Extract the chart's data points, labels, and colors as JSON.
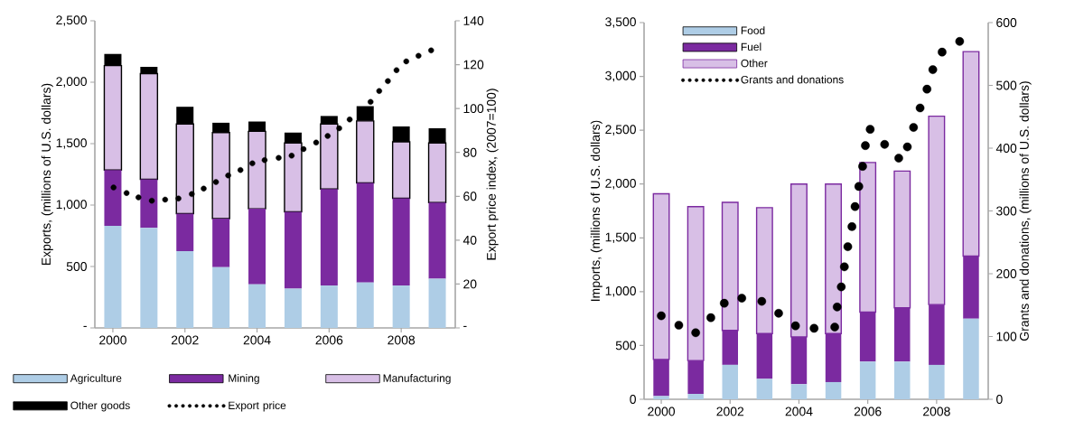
{
  "chart_data": [
    {
      "type": "bar",
      "stacked": true,
      "ylabel": "Exports, (millions of U.S. dollars)",
      "y2label": "Export price index,  (2007=100)",
      "x": [
        2000,
        2001,
        2002,
        2003,
        2004,
        2005,
        2006,
        2007,
        2008,
        2009
      ],
      "xlim": [
        1999.5,
        2009.5
      ],
      "xticks": [
        2000,
        2002,
        2004,
        2006,
        2008
      ],
      "ylim": [
        0,
        2500
      ],
      "yticks": [
        {
          "value": 0,
          "label": "-"
        },
        500,
        {
          "value": 1000,
          "label": "1,000"
        },
        {
          "value": 1500,
          "label": "1,500"
        },
        {
          "value": 2000,
          "label": "2,000"
        },
        {
          "value": 2500,
          "label": "2,500"
        }
      ],
      "y2lim": [
        0,
        140
      ],
      "y2ticks": [
        {
          "value": 0,
          "label": "-"
        },
        20,
        40,
        60,
        80,
        100,
        120,
        140
      ],
      "grid": false,
      "legend": "bottom",
      "marker": "circle",
      "series": [
        {
          "name": "Agriculture",
          "color": "#aecde6",
          "values": [
            830,
            815,
            625,
            495,
            355,
            320,
            345,
            370,
            345,
            400
          ]
        },
        {
          "name": "Mining",
          "color": "#7b2aa0",
          "values": [
            455,
            395,
            305,
            395,
            615,
            625,
            785,
            810,
            710,
            620
          ]
        },
        {
          "name": "Manufacturing",
          "color": "#d8bfe6",
          "values": [
            850,
            860,
            730,
            700,
            630,
            560,
            530,
            505,
            460,
            485
          ]
        },
        {
          "name": "Other goods",
          "color": "#000000",
          "values": [
            95,
            55,
            140,
            80,
            80,
            85,
            65,
            120,
            125,
            120
          ]
        },
        {
          "name": "Export price",
          "type": "scatter",
          "axis": "y2",
          "color": "#000000",
          "x": [
            2000.02,
            2000.38,
            2000.71,
            2001.08,
            2001.45,
            2001.82,
            2002.19,
            2002.52,
            2002.86,
            2003.2,
            2003.54,
            2003.87,
            2004.21,
            2004.6,
            2004.96,
            2005.29,
            2005.64,
            2005.96,
            2006.28,
            2006.57,
            2006.86,
            2007.15,
            2007.39,
            2007.63,
            2007.87,
            2008.14,
            2008.48,
            2008.83
          ],
          "values": [
            64,
            61.5,
            59.5,
            58,
            58.5,
            59,
            61,
            63.5,
            66.5,
            69.5,
            72,
            75,
            76.5,
            77.5,
            78.5,
            81.5,
            84.5,
            87.5,
            91,
            95,
            null,
            103,
            108,
            112.5,
            117.5,
            121.5,
            124,
            126.5
          ]
        }
      ]
    },
    {
      "type": "bar",
      "stacked": true,
      "ylabel": "Imports, (millions of U.S. dollars)",
      "y2label": "Grants and donations, (millions of U.S. dollars)",
      "x": [
        2000,
        2001,
        2002,
        2003,
        2004,
        2005,
        2006,
        2007,
        2008,
        2009
      ],
      "xlim": [
        1999.5,
        2009.5
      ],
      "xticks": [
        2000,
        2002,
        2004,
        2006,
        2008
      ],
      "ylim": [
        0,
        3500
      ],
      "yticks": [
        0,
        500,
        {
          "value": 1000,
          "label": "1,000"
        },
        {
          "value": 1500,
          "label": "1,500"
        },
        {
          "value": 2000,
          "label": "2,000"
        },
        {
          "value": 2500,
          "label": "2,500"
        },
        {
          "value": 3000,
          "label": "3,000"
        },
        {
          "value": 3500,
          "label": "3,500"
        }
      ],
      "y2lim": [
        0,
        600
      ],
      "y2ticks": [
        0,
        100,
        200,
        300,
        400,
        500,
        600
      ],
      "grid": false,
      "legend": "top left",
      "marker": "circle",
      "series": [
        {
          "name": "Food",
          "color": "#aecde6",
          "values": [
            30,
            50,
            320,
            190,
            140,
            160,
            350,
            350,
            320,
            750
          ]
        },
        {
          "name": "Fuel",
          "color": "#7b2aa0",
          "values": [
            340,
            310,
            320,
            420,
            440,
            450,
            460,
            500,
            560,
            580
          ]
        },
        {
          "name": "Other",
          "color": "#d8bfe6",
          "values": [
            1540,
            1430,
            1190,
            1170,
            1420,
            1390,
            1390,
            1270,
            1750,
            1900
          ]
        },
        {
          "name": "Grants and donations",
          "type": "scatter",
          "axis": "y2",
          "color": "#000000",
          "x": [
            2000.0,
            2000.51,
            2001.0,
            2001.44,
            2001.83,
            2002.34,
            2002.92,
            2003.41,
            2003.9,
            2004.44,
            2005.04,
            2005.11,
            2005.23,
            2005.32,
            2005.42,
            2005.54,
            2005.63,
            2005.74,
            2005.85,
            2005.93,
            2006.07,
            2006.49,
            2006.9,
            2007.15,
            2007.33,
            2007.52,
            2007.72,
            2007.89,
            2008.16,
            2008.67
          ],
          "values": [
            133,
            118,
            106,
            130,
            153,
            161,
            156,
            137,
            117,
            113,
            115,
            147,
            179,
            211,
            243,
            275,
            307,
            339,
            371,
            404,
            430,
            406,
            384,
            402,
            433,
            464,
            494,
            525,
            553,
            570
          ]
        }
      ]
    }
  ]
}
